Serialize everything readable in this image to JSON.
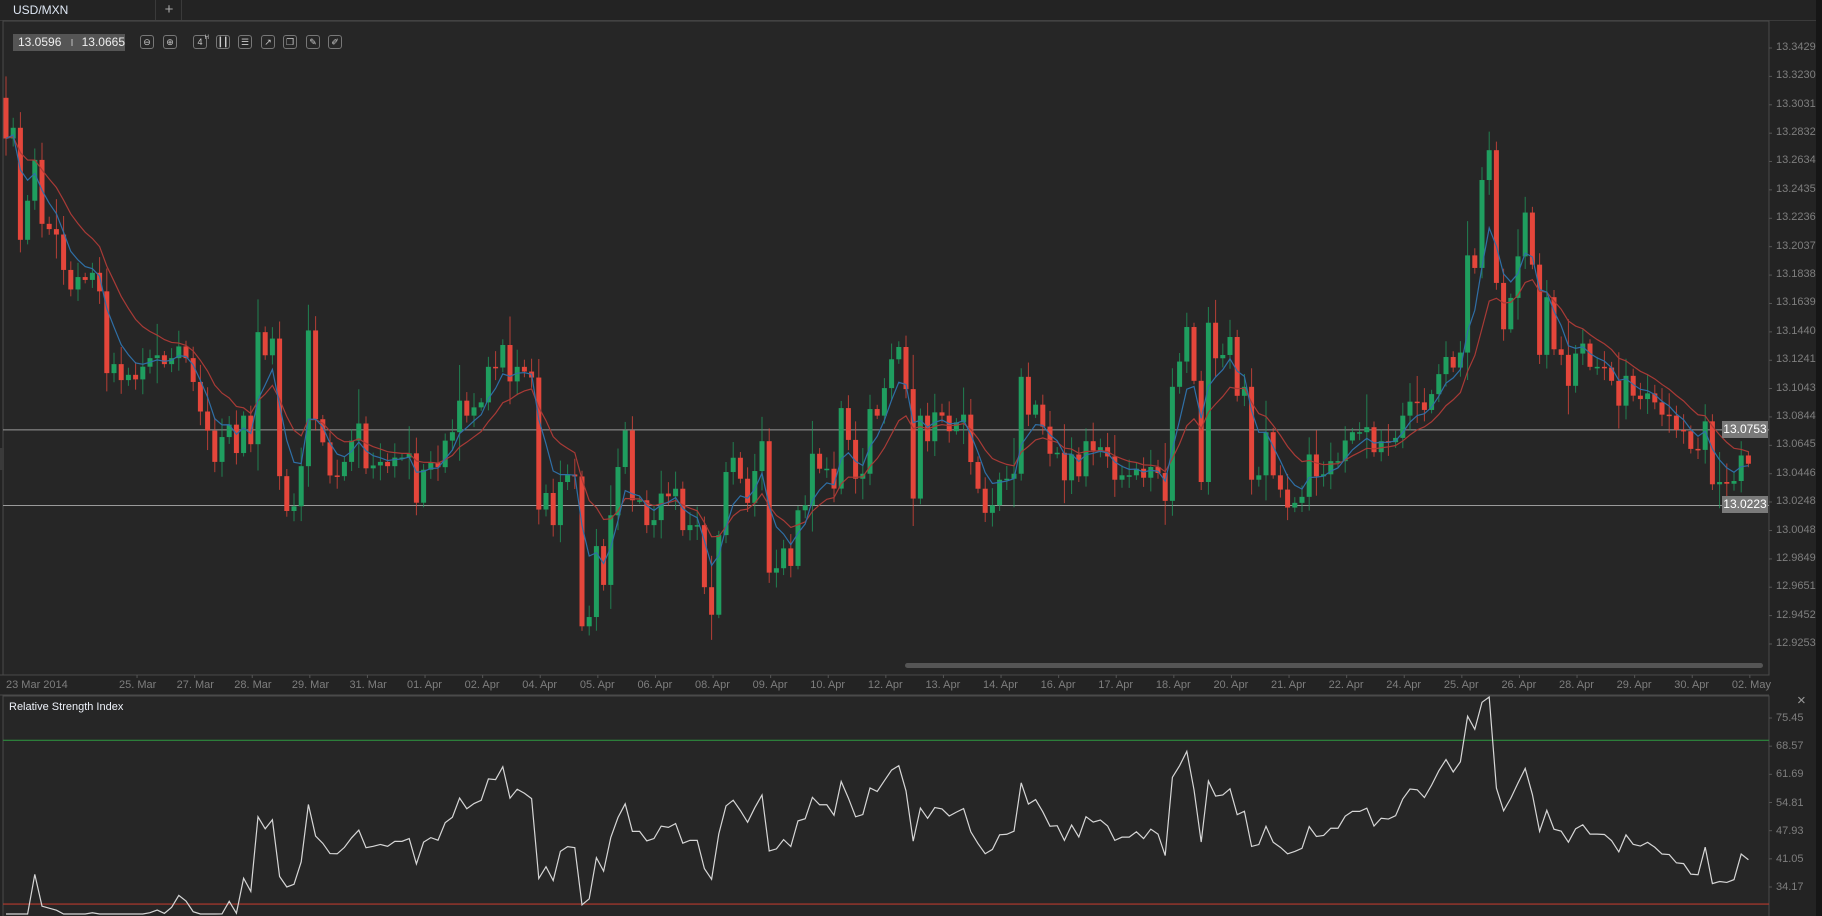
{
  "tabs": [
    {
      "label": "USD/MXN"
    }
  ],
  "add_tab_label": "+",
  "quote": {
    "bid": "13.0596",
    "ask": "13.0665"
  },
  "toolbar": {
    "icons": [
      "zoom-out-icon",
      "zoom-in-icon",
      "timeframe-icon",
      "chart-type-icon",
      "settings-sliders-icon",
      "indicators-icon",
      "copy-icon",
      "edit-icon",
      "draw-icon"
    ],
    "timeframe_label": "4",
    "timeframe_sup": "H"
  },
  "colors": {
    "up": "#1f9e5f",
    "down": "#e4463b",
    "ma_fast": "#2f6fa6",
    "ma_slow": "#a83a36",
    "rsi_line": "#d6d6d6",
    "rsi_upper": "#2e8b3d",
    "rsi_lower": "#b73a2e",
    "hline": "#9a9a9a"
  },
  "price_lines": [
    {
      "value": 13.0753,
      "label": "13.0753"
    },
    {
      "value": 13.0223,
      "label": "13.0223"
    }
  ],
  "rsi_panel": {
    "title": "Relative Strength Index",
    "close_label": "×",
    "upper_level": 70,
    "lower_level": 30
  },
  "chart_data": {
    "type": "candlestick",
    "symbol": "USD/MXN",
    "timeframe": "4H",
    "first_open": 13.308,
    "closes": [
      13.2795,
      13.287,
      13.2085,
      13.2359,
      13.2645,
      13.2197,
      13.216,
      13.2122,
      13.1874,
      13.1737,
      13.1824,
      13.1804,
      13.1854,
      13.1724,
      13.1151,
      13.1214,
      13.1102,
      13.1139,
      13.1107,
      13.1196,
      13.1256,
      13.1276,
      13.1214,
      13.1256,
      13.1338,
      13.1256,
      13.1089,
      13.0882,
      13.0748,
      13.0529,
      13.0703,
      13.079,
      13.0591,
      13.0853,
      13.0653,
      13.1438,
      13.1276,
      13.1393,
      13.0429,
      13.0185,
      13.0218,
      13.0499,
      13.145,
      13.0828,
      13.0666,
      13.0434,
      13.0429,
      13.0529,
      13.0678,
      13.0798,
      13.0484,
      13.0504,
      13.0529,
      13.0499,
      13.0559,
      13.0559,
      13.0589,
      13.0243,
      13.0474,
      13.0524,
      13.0492,
      13.0678,
      13.0737,
      13.0958,
      13.0853,
      13.0911,
      13.0946,
      13.1195,
      13.119,
      13.1348,
      13.1093,
      13.1195,
      13.1162,
      13.112,
      13.0195,
      13.0311,
      13.0086,
      13.0388,
      13.0441,
      13.0427,
      12.9377,
      12.9442,
      12.9939,
      12.9667,
      13.0155,
      13.0493,
      13.0749,
      13.026,
      13.026,
      13.0086,
      13.0121,
      13.0307,
      13.0288,
      13.0341,
      13.0051,
      13.0086,
      13.0086,
      12.9651,
      12.9458,
      13.0016,
      13.0458,
      13.0558,
      13.0411,
      13.0242,
      13.0465,
      13.0674,
      12.9753,
      12.9784,
      12.9923,
      12.98,
      13.019,
      13.0225,
      13.0586,
      13.0481,
      13.0481,
      13.0342,
      13.0906,
      13.0683,
      13.0411,
      13.0446,
      13.0899,
      13.0853,
      13.1046,
      13.1248,
      13.1334,
      13.1039,
      13.0272,
      13.0853,
      13.0674,
      13.0876,
      13.0853,
      13.0744,
      13.0806,
      13.086,
      13.0528,
      13.0341,
      13.0172,
      13.0225,
      13.0404,
      13.0411,
      13.0446,
      13.1125,
      13.086,
      13.093,
      13.0776,
      13.0586,
      13.0593,
      13.04,
      13.0581,
      13.0428,
      13.0674,
      13.0609,
      13.0632,
      13.0567,
      13.0404,
      13.0435,
      13.0435,
      13.0481,
      13.0418,
      13.0493,
      13.0451,
      13.0256,
      13.1055,
      13.1232,
      13.1474,
      13.1097,
      13.0388,
      13.1504,
      13.1255,
      13.1278,
      13.1404,
      13.0992,
      13.1055,
      13.0404,
      13.0435,
      13.0737,
      13.0435,
      13.0335,
      13.0209,
      13.0242,
      13.0284,
      13.0581,
      13.0428,
      13.0442,
      13.0534,
      13.0534,
      13.0679,
      13.0737,
      13.0737,
      13.0772,
      13.0597,
      13.0674,
      13.0667,
      13.0697,
      13.0853,
      13.0951,
      13.0946,
      13.0893,
      13.1004,
      13.1144,
      13.1264,
      13.119,
      13.1295,
      13.1976,
      13.1888,
      13.2504,
      13.2713,
      13.1783,
      13.1458,
      13.1678,
      13.1969,
      13.2276,
      13.1911,
      13.1279,
      13.1683,
      13.1318,
      13.1279,
      13.1062,
      13.1288,
      13.1358,
      13.1195,
      13.1195,
      13.119,
      13.1097,
      13.0923,
      13.1132,
      13.0993,
      13.0969,
      13.1009,
      13.0946,
      13.086,
      13.0853,
      13.0753,
      13.0744,
      13.062,
      13.0613,
      13.0813,
      13.0372,
      13.0388,
      13.0376,
      13.0395,
      13.0574,
      13.0516
    ],
    "y_ticks": [
      "13.3429",
      "13.3230",
      "13.3031",
      "13.2832",
      "13.2634",
      "13.2435",
      "13.2236",
      "13.2037",
      "13.1838",
      "13.1639",
      "13.1440",
      "13.1241",
      "13.1043",
      "13.0844",
      "13.0645",
      "13.0446",
      "13.0248",
      "13.0048",
      "12.9849",
      "12.9651",
      "12.9452",
      "12.9253"
    ],
    "ylim": [
      12.9253,
      13.3429
    ],
    "x_labels": [
      "23 Mar 2014",
      "25. Mar",
      "27. Mar",
      "28. Mar",
      "29. Mar",
      "31. Mar",
      "01. Apr",
      "02. Apr",
      "04. Apr",
      "05. Apr",
      "06. Apr",
      "08. Apr",
      "09. Apr",
      "10. Apr",
      "12. Apr",
      "13. Apr",
      "14. Apr",
      "16. Apr",
      "17. Apr",
      "18. Apr",
      "20. Apr",
      "21. Apr",
      "22. Apr",
      "24. Apr",
      "25. Apr",
      "26. Apr",
      "28. Apr",
      "29. Apr",
      "30. Apr",
      "02. May"
    ],
    "rsi": {
      "ticks": [
        "75.45",
        "68.57",
        "61.69",
        "54.81",
        "47.93",
        "41.05",
        "34.17"
      ],
      "ylim": [
        34.17,
        75.45
      ]
    }
  }
}
